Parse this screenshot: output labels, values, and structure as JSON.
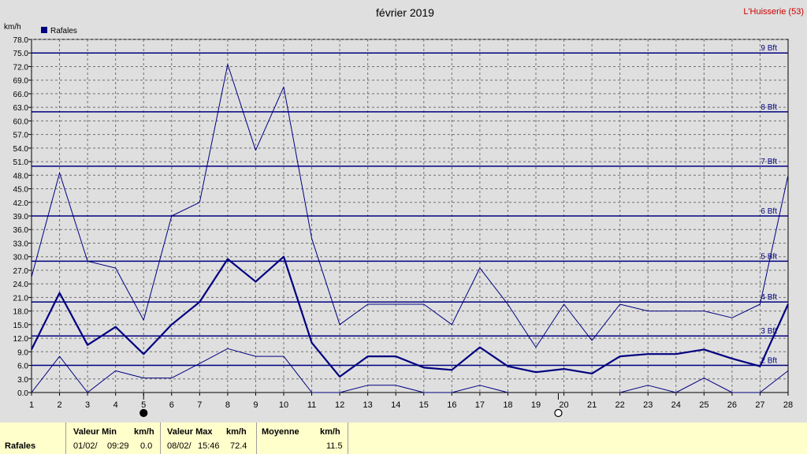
{
  "chart_data": {
    "type": "line",
    "title": "février 2019",
    "station": "L'Huisserie (53)",
    "y_unit": "km/h",
    "legend_label": "Rafales",
    "legend_placement": "top-left",
    "grid": true,
    "x": [
      1,
      2,
      3,
      4,
      5,
      6,
      7,
      8,
      9,
      10,
      11,
      12,
      13,
      14,
      15,
      16,
      17,
      18,
      19,
      20,
      21,
      22,
      23,
      24,
      25,
      26,
      27,
      28
    ],
    "xlim": [
      1,
      28
    ],
    "ylim": [
      0,
      78
    ],
    "y_ticks": [
      "0.0",
      "3.0",
      "6.0",
      "9.0",
      "12.0",
      "15.0",
      "18.0",
      "21.0",
      "24.0",
      "27.0",
      "30.0",
      "33.0",
      "36.0",
      "39.0",
      "42.0",
      "45.0",
      "48.0",
      "51.0",
      "54.0",
      "57.0",
      "60.0",
      "63.0",
      "66.0",
      "69.0",
      "72.0",
      "75.0",
      "78.0"
    ],
    "series": [
      {
        "role": "max",
        "values": [
          25.5,
          48.5,
          29,
          27.5,
          16,
          39,
          42,
          72.5,
          53.5,
          67.5,
          34,
          15,
          19.5,
          19.5,
          19.5,
          15,
          27.5,
          19.5,
          10,
          19.5,
          11.5,
          19.5,
          18,
          18,
          18,
          16.5,
          19.5,
          48
        ]
      },
      {
        "role": "mean",
        "values": [
          9.5,
          22,
          10.5,
          14.5,
          8.5,
          15,
          20,
          29.5,
          24.5,
          30,
          11,
          3.5,
          8,
          8,
          5.5,
          5,
          10,
          5.8,
          4.5,
          5.2,
          4.2,
          8,
          8.5,
          8.5,
          9.5,
          7.5,
          5.8,
          19.5
        ]
      },
      {
        "role": "min",
        "values": [
          0,
          8,
          0,
          4.8,
          3.2,
          3.2,
          6.4,
          9.7,
          8,
          8,
          0,
          0,
          1.6,
          1.6,
          0,
          0,
          1.6,
          0,
          null,
          null,
          null,
          0,
          1.6,
          0,
          3.2,
          0,
          0,
          4.8
        ]
      }
    ],
    "beaufort_lines": [
      {
        "label": "2 Bft",
        "value": 6
      },
      {
        "label": "3 Bft",
        "value": 12.5
      },
      {
        "label": "4 Bft",
        "value": 20
      },
      {
        "label": "5 Bft",
        "value": 29
      },
      {
        "label": "6 Bft",
        "value": 39
      },
      {
        "label": "7 Bft",
        "value": 50
      },
      {
        "label": "8 Bft",
        "value": 62
      },
      {
        "label": "9 Bft",
        "value": 75
      }
    ],
    "moon_phases": [
      {
        "day": 5,
        "phase": "new"
      },
      {
        "day": 19.8,
        "phase": "full"
      }
    ]
  },
  "footer": {
    "series_label": "Rafales",
    "min_header": "Valeur Min",
    "max_header": "Valeur Max",
    "mean_header": "Moyenne",
    "unit": "km/h",
    "min_date": "01/02/",
    "min_time": "09:29",
    "min_value": "0.0",
    "max_date": "08/02/",
    "max_time": "15:46",
    "max_value": "72.4",
    "mean_value": "11.5"
  },
  "colors": {
    "line": "#000080",
    "grid": "#707070",
    "background": "#dfdfdf",
    "footer_bg": "#ffffcc",
    "station_text": "#cc0000"
  }
}
